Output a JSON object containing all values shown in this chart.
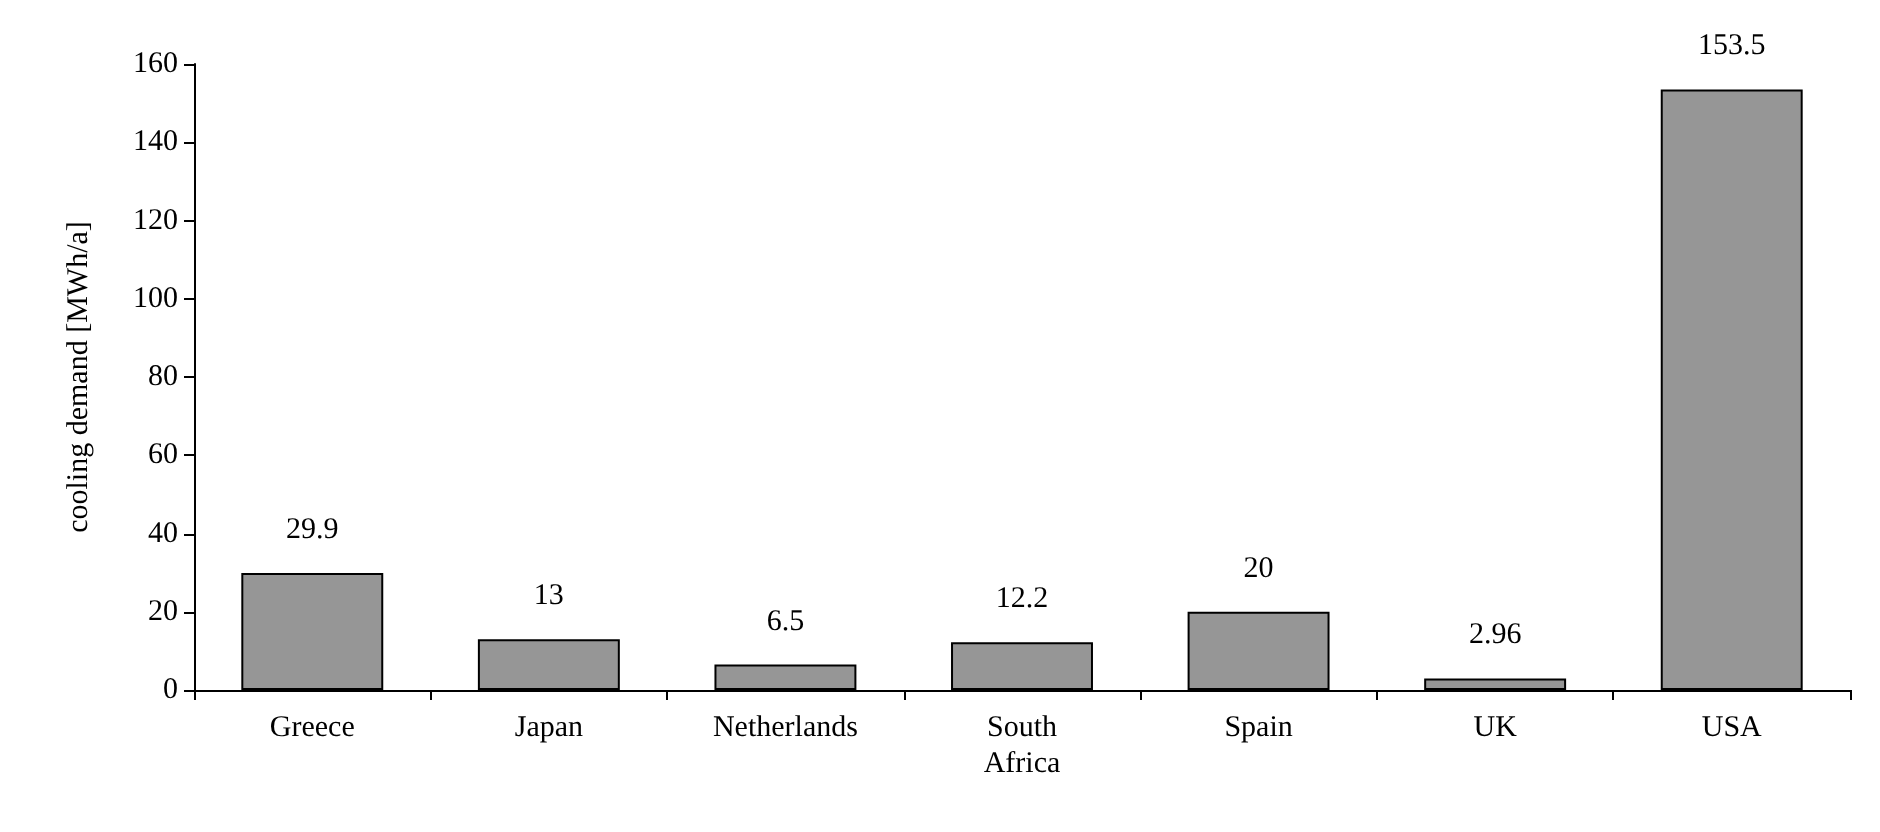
{
  "chart_data": {
    "type": "bar",
    "ylabel": "cooling demand [MWh/a]",
    "categories": [
      "Greece",
      "Japan",
      "Netherlands",
      "South Africa",
      "Spain",
      "UK",
      "USA"
    ],
    "values": [
      29.9,
      13,
      6.5,
      12.2,
      20,
      2.96,
      153.5
    ],
    "value_labels": [
      "29.9",
      "13",
      "6.5",
      "12.2",
      "20",
      "2.96",
      "153.5"
    ],
    "color": "#969696",
    "ylim": [
      0,
      160
    ],
    "yticks": [
      0,
      20,
      40,
      60,
      80,
      100,
      120,
      140,
      160
    ],
    "grid": false
  }
}
